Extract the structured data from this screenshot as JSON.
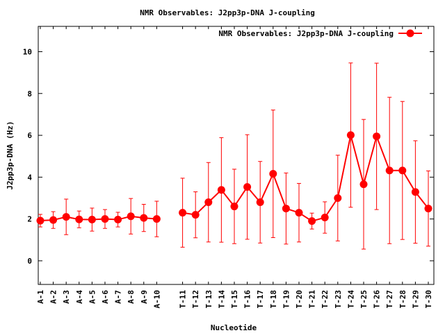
{
  "chart_data": {
    "type": "line",
    "title": "NMR Observables: J2pp3p-DNA J-coupling",
    "xlabel": "Nucleotide",
    "ylabel": "J2pp3p-DNA (Hz)",
    "ylim": [
      -1.13,
      11.21
    ],
    "xlim": [
      0.84,
      31.43
    ],
    "yticks": [
      0,
      2,
      4,
      6,
      8,
      10
    ],
    "grid": false,
    "legend": {
      "position": "top-right",
      "label": "NMR Observables: J2pp3p-DNA J-coupling"
    },
    "color": "#ff0000",
    "categories": [
      "A-1",
      "A-2",
      "A-3",
      "A-4",
      "A-5",
      "A-6",
      "A-7",
      "A-8",
      "A-9",
      "A-10",
      "T-11",
      "T-12",
      "T-13",
      "T-14",
      "T-15",
      "T-16",
      "T-17",
      "T-18",
      "T-19",
      "T-20",
      "T-21",
      "T-22",
      "T-23",
      "T-24",
      "T-25",
      "T-26",
      "T-27",
      "T-28",
      "T-29",
      "T-30"
    ],
    "x": [
      1,
      2,
      3,
      4,
      5,
      6,
      7,
      8,
      9,
      10,
      12,
      13,
      14,
      15,
      16,
      17,
      18,
      19,
      20,
      21,
      22,
      23,
      24,
      25,
      26,
      27,
      28,
      29,
      30,
      31
    ],
    "segments": [
      [
        0,
        9
      ],
      [
        10,
        29
      ]
    ],
    "values": [
      1.92,
      1.95,
      2.1,
      1.98,
      1.97,
      2.0,
      1.97,
      2.13,
      2.05,
      2.0,
      2.3,
      2.2,
      2.8,
      3.39,
      2.6,
      3.53,
      2.8,
      4.16,
      2.5,
      2.3,
      1.9,
      2.07,
      3.0,
      6.01,
      3.66,
      5.95,
      4.32,
      4.32,
      3.29,
      2.5
    ],
    "errors": [
      0.3,
      0.4,
      0.85,
      0.4,
      0.55,
      0.45,
      0.35,
      0.85,
      0.65,
      0.85,
      1.65,
      1.1,
      1.9,
      2.5,
      1.78,
      2.5,
      1.95,
      3.05,
      1.7,
      1.4,
      0.38,
      0.75,
      2.05,
      3.45,
      3.1,
      3.5,
      3.5,
      3.3,
      2.45,
      1.8
    ]
  }
}
